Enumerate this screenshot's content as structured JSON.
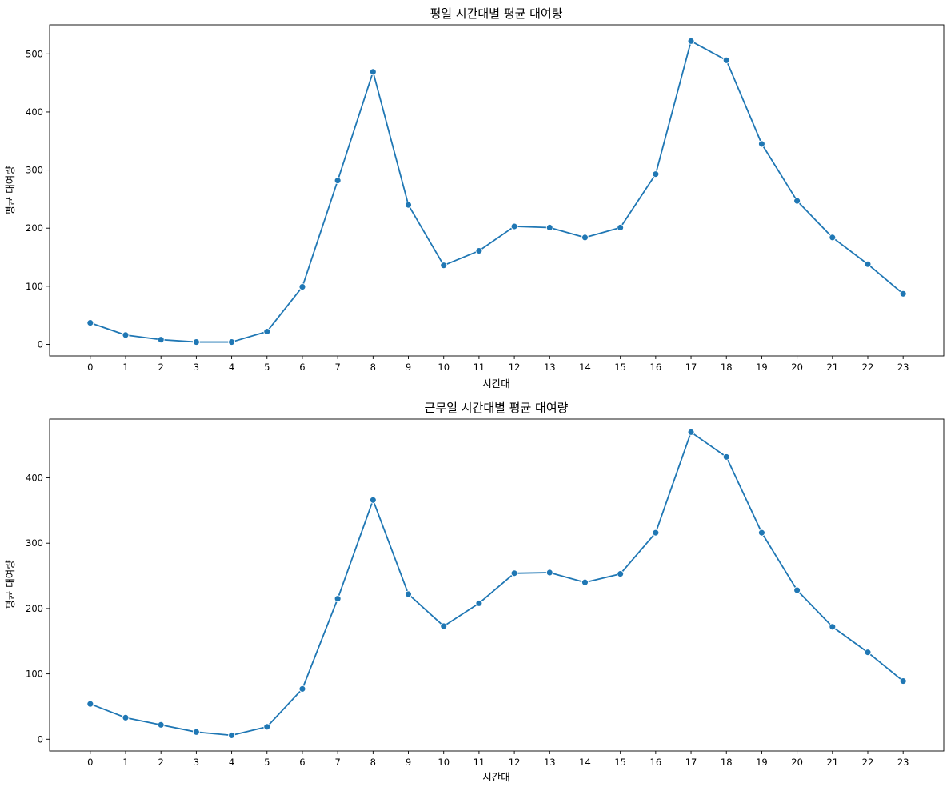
{
  "chart_data": [
    {
      "type": "line",
      "title": "평일 시간대별 평균 대여량",
      "xlabel": "시간대",
      "ylabel": "평균 대여량",
      "x": [
        0,
        1,
        2,
        3,
        4,
        5,
        6,
        7,
        8,
        9,
        10,
        11,
        12,
        13,
        14,
        15,
        16,
        17,
        18,
        19,
        20,
        21,
        22,
        23
      ],
      "values": [
        37,
        16,
        8,
        4,
        4,
        22,
        99,
        282,
        469,
        240,
        136,
        161,
        203,
        201,
        184,
        201,
        293,
        522,
        489,
        345,
        247,
        184,
        138,
        87
      ],
      "xticks": [
        "0",
        "1",
        "2",
        "3",
        "4",
        "5",
        "6",
        "7",
        "8",
        "9",
        "10",
        "11",
        "12",
        "13",
        "14",
        "15",
        "16",
        "17",
        "18",
        "19",
        "20",
        "21",
        "22",
        "23"
      ],
      "yticks": [
        0,
        100,
        200,
        300,
        400,
        500
      ],
      "ylim": [
        -20,
        550
      ],
      "grid": false,
      "marker": "circle",
      "color": "#1f77b4"
    },
    {
      "type": "line",
      "title": "근무일 시간대별 평균 대여량",
      "xlabel": "시간대",
      "ylabel": "평균 대여량",
      "x": [
        0,
        1,
        2,
        3,
        4,
        5,
        6,
        7,
        8,
        9,
        10,
        11,
        12,
        13,
        14,
        15,
        16,
        17,
        18,
        19,
        20,
        21,
        22,
        23
      ],
      "values": [
        54,
        33,
        22,
        11,
        6,
        19,
        77,
        215,
        366,
        222,
        173,
        208,
        254,
        255,
        240,
        253,
        316,
        470,
        432,
        316,
        228,
        172,
        133,
        89
      ],
      "xticks": [
        "0",
        "1",
        "2",
        "3",
        "4",
        "5",
        "6",
        "7",
        "8",
        "9",
        "10",
        "11",
        "12",
        "13",
        "14",
        "15",
        "16",
        "17",
        "18",
        "19",
        "20",
        "21",
        "22",
        "23"
      ],
      "yticks": [
        0,
        100,
        200,
        300,
        400
      ],
      "ylim": [
        -18,
        490
      ],
      "grid": false,
      "marker": "circle",
      "color": "#1f77b4"
    }
  ]
}
